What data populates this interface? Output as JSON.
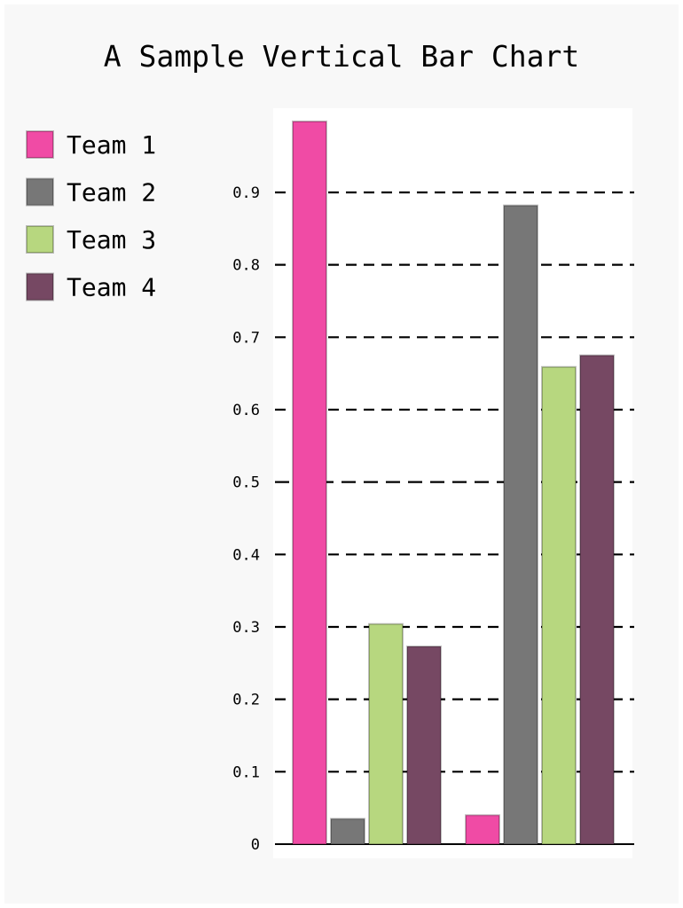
{
  "chart_data": {
    "type": "bar",
    "title": "A Sample Vertical Bar Chart",
    "xlabel": "",
    "ylabel": "",
    "categories": [
      "",
      ""
    ],
    "ylim": [
      0,
      1.0
    ],
    "yticks": [
      "0",
      "0.1",
      "0.2",
      "0.3",
      "0.4",
      "0.5",
      "0.6",
      "0.7",
      "0.8",
      "0.9"
    ],
    "grid": true,
    "legend_position": "left",
    "series": [
      {
        "name": "Team 1",
        "color": "#F04BA5",
        "values": [
          0.998,
          0.04
        ]
      },
      {
        "name": "Team 2",
        "color": "#777777",
        "values": [
          0.035,
          0.882
        ]
      },
      {
        "name": "Team 3",
        "color": "#B7D77F",
        "values": [
          0.304,
          0.659
        ]
      },
      {
        "name": "Team 4",
        "color": "#764863",
        "values": [
          0.273,
          0.675
        ]
      }
    ]
  }
}
